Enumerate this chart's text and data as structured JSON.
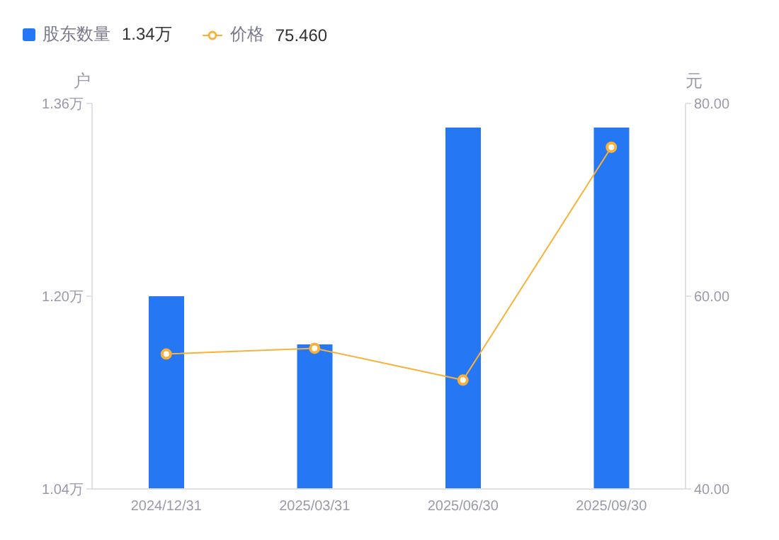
{
  "chart_data": {
    "type": "bar",
    "categories": [
      "2024/12/31",
      "2025/03/31",
      "2025/06/30",
      "2025/09/30"
    ],
    "series": [
      {
        "name": "股东数量",
        "color": "#2577f4",
        "values": [
          1.2,
          1.16,
          1.34,
          1.34
        ]
      },
      {
        "name": "价格",
        "type": "line",
        "axis": "y2",
        "color": "#f8b23b",
        "values": [
          54.0,
          54.6,
          51.3,
          75.46
        ]
      }
    ],
    "annotations": [
      "1.34万",
      "75.460"
    ],
    "ylabel": "户",
    "y2label": "元",
    "ylim": [
      1.04,
      1.36
    ],
    "yticks": [
      {
        "value": 1.04,
        "label": "1.04万"
      },
      {
        "value": 1.2,
        "label": "1.20万"
      },
      {
        "value": 1.36,
        "label": "1.36万"
      }
    ],
    "y2lim": [
      40,
      80
    ],
    "y2ticks": [
      {
        "value": 40,
        "label": "40.00"
      },
      {
        "value": 60,
        "label": "60.00"
      },
      {
        "value": 80,
        "label": "80.00"
      }
    ],
    "marker": "circle",
    "legend": "top left"
  }
}
